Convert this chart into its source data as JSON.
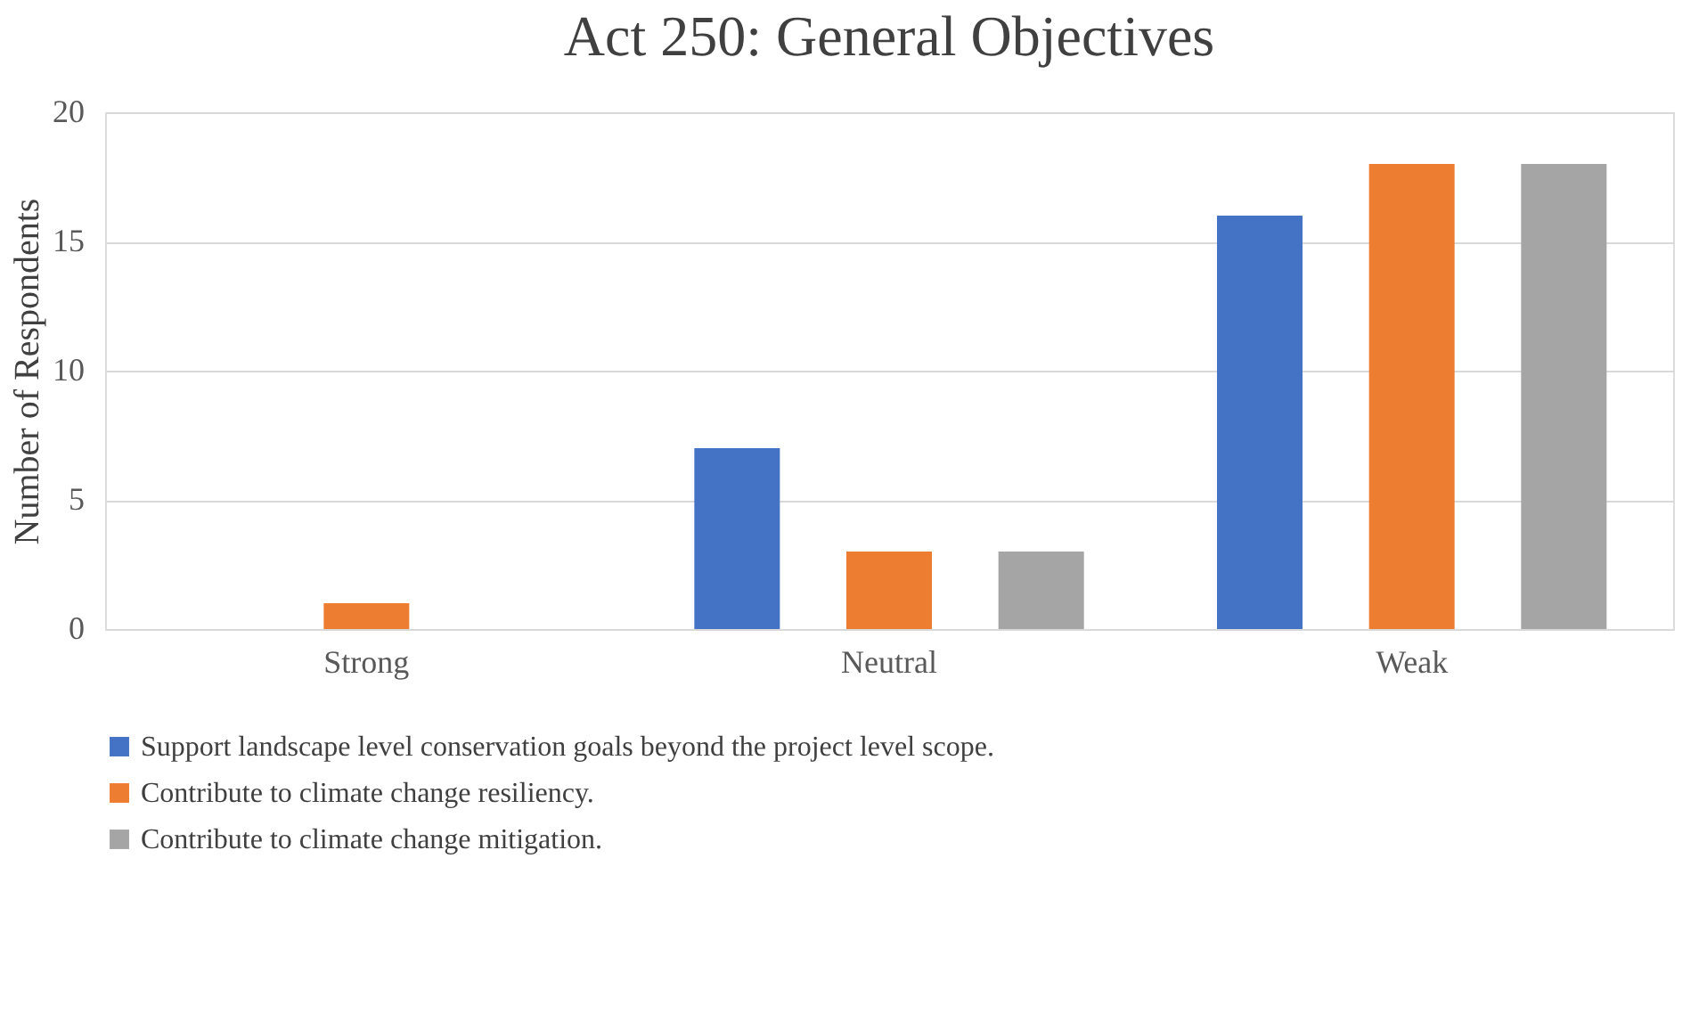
{
  "chart_data": {
    "type": "bar",
    "title": "Act 250: General Objectives",
    "ylabel": "Number of Respondents",
    "categories": [
      "Strong",
      "Neutral",
      "Weak"
    ],
    "series": [
      {
        "name": "Support landscape level conservation goals beyond the project level scope.",
        "color": "#4472c4",
        "values": [
          0,
          7,
          16
        ]
      },
      {
        "name": "Contribute to climate change resiliency.",
        "color": "#ed7d31",
        "values": [
          1,
          3,
          18
        ]
      },
      {
        "name": "Contribute to climate change mitigation.",
        "color": "#a5a5a5",
        "values": [
          0,
          3,
          18
        ]
      }
    ],
    "ylim": [
      0,
      20
    ],
    "yticks": [
      0,
      5,
      10,
      15,
      20
    ],
    "grid": "y",
    "legend": "bottom"
  }
}
